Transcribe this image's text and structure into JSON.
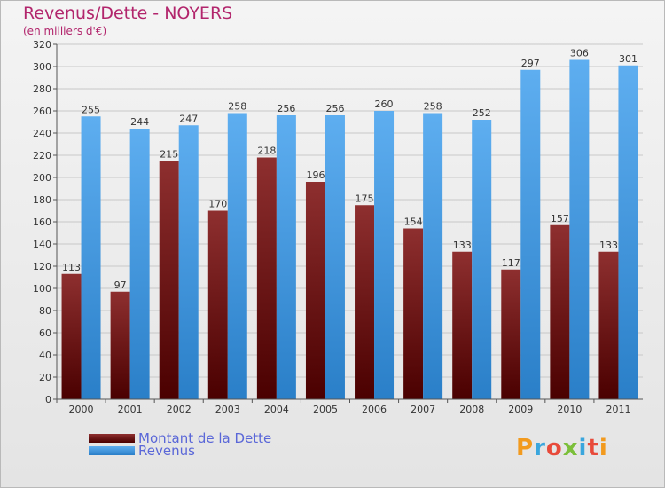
{
  "title": "Revenus/Dette - NOYERS",
  "subtitle": "(en milliers d'€)",
  "logo": "Proxiti",
  "chart_data": {
    "type": "bar",
    "title": "Revenus/Dette - NOYERS",
    "subtitle": "(en milliers d'€)",
    "categories": [
      "2000",
      "2001",
      "2002",
      "2003",
      "2004",
      "2005",
      "2006",
      "2007",
      "2008",
      "2009",
      "2010",
      "2011"
    ],
    "series": [
      {
        "name": "Montant de la Dette",
        "color": "#7a1a1a",
        "values": [
          113,
          97,
          215,
          170,
          218,
          196,
          175,
          154,
          133,
          117,
          157,
          133
        ]
      },
      {
        "name": "Revenus",
        "color": "#4a9ee2",
        "values": [
          255,
          244,
          247,
          258,
          256,
          256,
          260,
          258,
          252,
          297,
          306,
          301
        ]
      }
    ],
    "ylim": [
      0,
      320
    ],
    "yticks": [
      0,
      20,
      40,
      60,
      80,
      100,
      120,
      140,
      160,
      180,
      200,
      220,
      240,
      260,
      280,
      300,
      320
    ],
    "grid": true,
    "legend": "bottom-left"
  }
}
